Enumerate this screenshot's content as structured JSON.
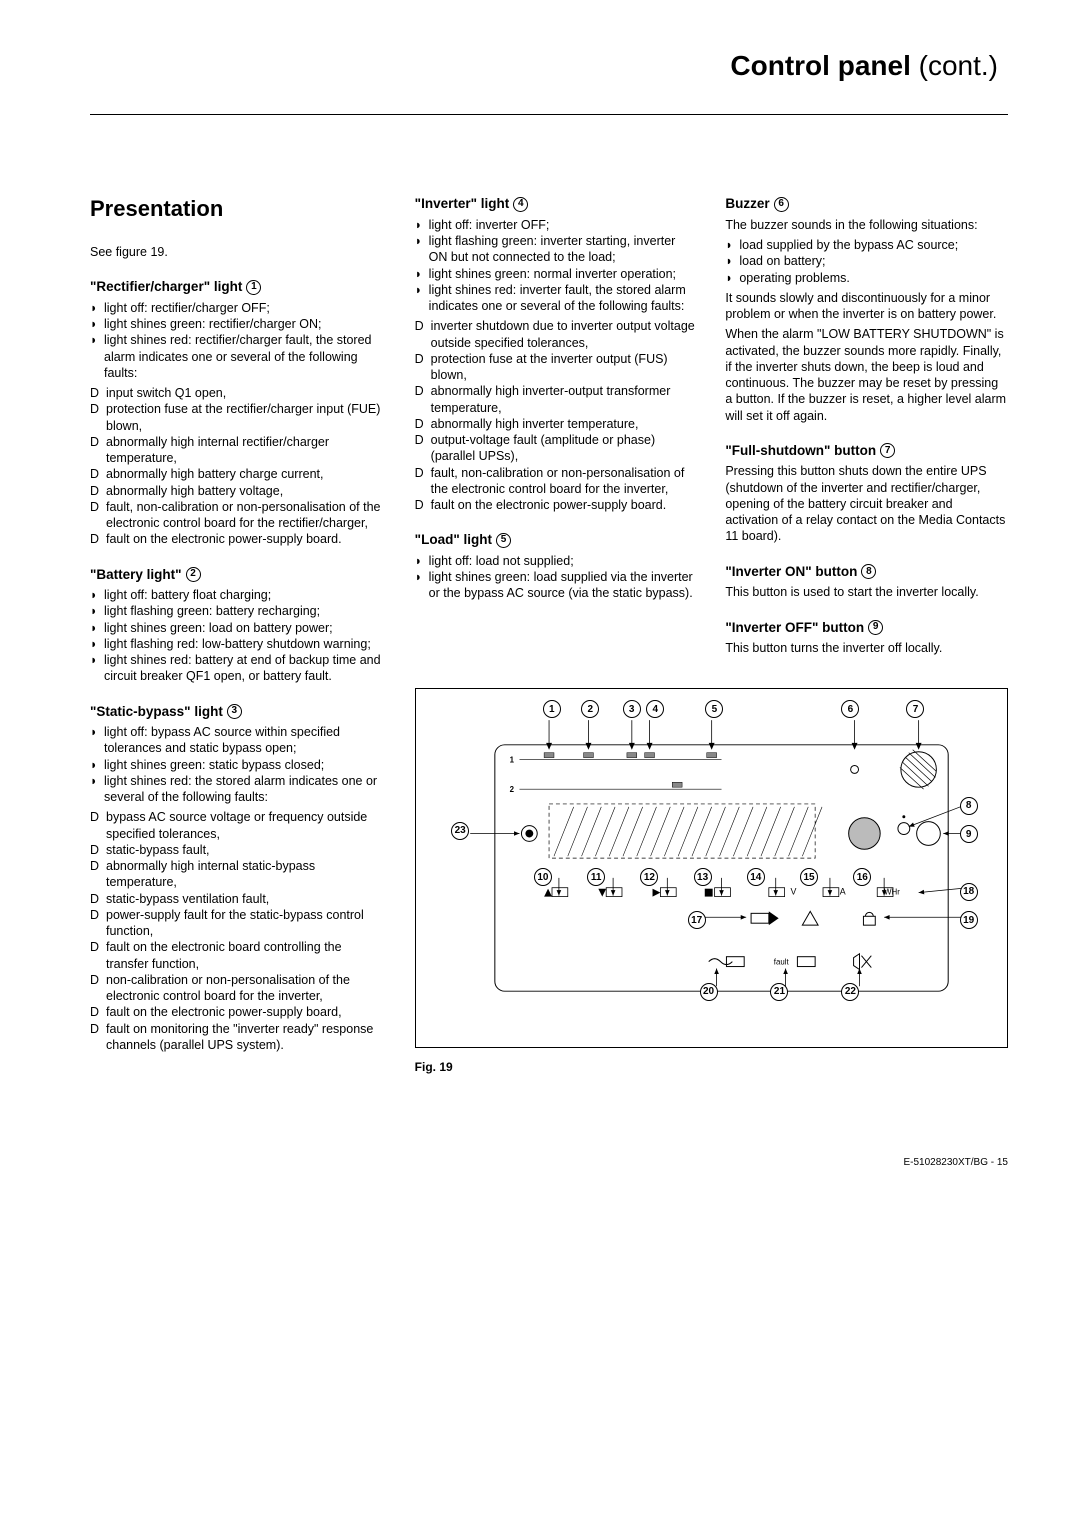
{
  "page_title_bold": "Control panel",
  "page_title_thin": " (cont.)",
  "section_title": "Presentation",
  "see_figure": "See figure 19.",
  "col1": {
    "groups": [
      {
        "title": "\"Rectifier/charger\" light ",
        "num": "1",
        "bullets": [
          "light off: rectifier/charger OFF;",
          "light shines green: rectifier/charger ON;",
          "light shines red: rectifier/charger fault, the stored alarm indicates one or several of the following faults:"
        ],
        "dbullets": [
          "input switch Q1 open,",
          "protection fuse at the rectifier/charger input (FUE) blown,",
          "abnormally high internal rectifier/charger temperature,",
          "abnormally high battery charge current,",
          "abnormally high battery voltage,",
          "fault, non-calibration or non-personalisation of the electronic control board for the rectifier/charger,",
          "fault on the electronic power-supply board."
        ]
      },
      {
        "title": "\"Battery light\" ",
        "num": "2",
        "bullets": [
          "light off: battery float charging;",
          "light flashing green: battery recharging;",
          "light shines green: load on battery power;",
          "light flashing red: low-battery shutdown warning;",
          "light shines red: battery at end of backup time and circuit breaker QF1 open, or battery fault."
        ],
        "dbullets": []
      },
      {
        "title": "\"Static-bypass\" light ",
        "num": "3",
        "bullets": [
          "light off: bypass AC source within specified tolerances and static bypass open;",
          "light shines green: static bypass closed;",
          "light shines red: the stored alarm indicates one or several of the following faults:"
        ],
        "dbullets": [
          "bypass AC source voltage or frequency outside specified tolerances,",
          "static-bypass fault,",
          "abnormally high internal static-bypass temperature,",
          "static-bypass ventilation fault,",
          "power-supply fault for the static-bypass control function,",
          "fault on the electronic board controlling the transfer function,",
          "non-calibration or non-personalisation of the electronic control board for the inverter,",
          "fault on the electronic power-supply board,",
          "fault on monitoring the \"inverter ready\" response channels (parallel UPS system)."
        ]
      }
    ]
  },
  "col2": {
    "groups": [
      {
        "title": "\"Inverter\" light ",
        "num": "4",
        "bullets": [
          "light off: inverter OFF;",
          "light flashing green: inverter starting, inverter ON but not connected to the load;",
          "light shines green: normal inverter operation;",
          "light shines red: inverter fault, the stored alarm indicates one or several of the following faults:"
        ],
        "dbullets": [
          "inverter shutdown due to inverter output voltage outside specified tolerances,",
          "protection fuse at the inverter output (FUS) blown,",
          "abnormally high inverter-output transformer temperature,",
          "abnormally high inverter temperature,",
          "output-voltage fault (amplitude or phase) (parallel UPSs),",
          "fault, non-calibration or non-personalisation of the electronic control board for the inverter,",
          "fault on the electronic power-supply board."
        ]
      },
      {
        "title": "\"Load\" light ",
        "num": "5",
        "bullets": [
          "light off: load not supplied;",
          "light shines green: load supplied via the inverter or the bypass AC source (via the static bypass)."
        ],
        "dbullets": []
      }
    ]
  },
  "col3": {
    "groups": [
      {
        "title": "Buzzer ",
        "num": "6",
        "para_before": "The buzzer sounds in the following situations:",
        "bullets": [
          "load supplied by the bypass AC source;",
          "load on battery;",
          "operating problems."
        ],
        "dbullets": [],
        "para_after": "It sounds slowly and discontinuously for a minor problem or when the inverter is on battery power.\nWhen the alarm \"LOW BATTERY SHUTDOWN\" is activated, the buzzer sounds more rapidly. Finally, if the inverter shuts down, the beep is loud and continuous. The buzzer may be reset by pressing a button. If the buzzer is reset, a higher level alarm will set it off again."
      },
      {
        "title": "\"Full-shutdown\" button ",
        "num": "7",
        "para_after": "Pressing this button shuts down the entire UPS (shutdown of the inverter and rectifier/charger, opening of the battery circuit breaker and activation of a relay contact on the Media Contacts 11 board)."
      },
      {
        "title": "\"Inverter ON\" button ",
        "num": "8",
        "para_after": "This button is used to start the inverter locally."
      },
      {
        "title": "\"Inverter OFF\" button ",
        "num": "9",
        "para_after": "This button turns the inverter off locally."
      }
    ]
  },
  "figure": {
    "caption": "Fig. 19",
    "top_numbers": [
      "1",
      "2",
      "3",
      "4",
      "5",
      "6",
      "7"
    ],
    "right_numbers": [
      "8",
      "9",
      "18",
      "19"
    ],
    "mid_numbers": [
      "10",
      "11",
      "12",
      "13",
      "14",
      "15",
      "16"
    ],
    "row_labels": [
      "V",
      "A",
      "WHr"
    ],
    "bottom_numbers": [
      "20",
      "21",
      "22"
    ],
    "left_number": "23",
    "mid_right_number": "17",
    "small_labels": [
      "1",
      "2"
    ],
    "icon_labels": [
      "fault"
    ]
  },
  "footer": "E-51028230XT/BG  - 15"
}
